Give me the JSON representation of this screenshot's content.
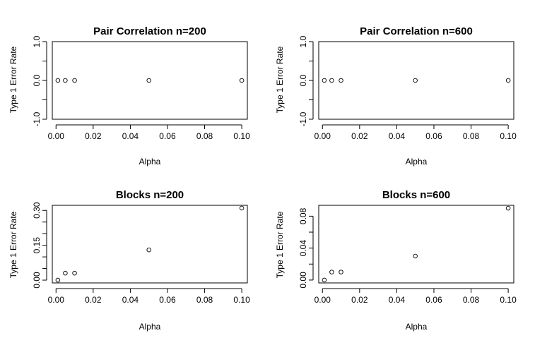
{
  "chart_data": [
    {
      "type": "scatter",
      "title": "Pair Correlation n=200",
      "xlabel": "Alpha",
      "ylabel": "Type 1 Error Rate",
      "x": [
        0.001,
        0.005,
        0.01,
        0.05,
        0.1
      ],
      "y": [
        0,
        0,
        0,
        0,
        0
      ],
      "xlim": [
        -0.002,
        0.103
      ],
      "ylim": [
        -1.0,
        1.0
      ],
      "xticks": [
        0.0,
        0.02,
        0.04,
        0.06,
        0.08,
        0.1
      ],
      "xtick_labels": [
        "0.00",
        "0.02",
        "0.04",
        "0.06",
        "0.08",
        "0.10"
      ],
      "yticks": [
        -1.0,
        0.0,
        1.0
      ],
      "ytick_labels": [
        "-1.0",
        "0.0",
        "1.0"
      ],
      "yminor": [
        -0.5,
        0.5
      ],
      "grid": false,
      "marker": "circle-open"
    },
    {
      "type": "scatter",
      "title": "Pair Correlation n=600",
      "xlabel": "Alpha",
      "ylabel": "Type 1 Error Rate",
      "x": [
        0.001,
        0.005,
        0.01,
        0.05,
        0.1
      ],
      "y": [
        0,
        0,
        0,
        0,
        0
      ],
      "xlim": [
        -0.002,
        0.103
      ],
      "ylim": [
        -1.0,
        1.0
      ],
      "xticks": [
        0.0,
        0.02,
        0.04,
        0.06,
        0.08,
        0.1
      ],
      "xtick_labels": [
        "0.00",
        "0.02",
        "0.04",
        "0.06",
        "0.08",
        "0.10"
      ],
      "yticks": [
        -1.0,
        0.0,
        1.0
      ],
      "ytick_labels": [
        "-1.0",
        "0.0",
        "1.0"
      ],
      "yminor": [
        -0.5,
        0.5
      ],
      "grid": false,
      "marker": "circle-open"
    },
    {
      "type": "scatter",
      "title": "Blocks n=200",
      "xlabel": "Alpha",
      "ylabel": "Type 1 Error Rate",
      "x": [
        0.001,
        0.005,
        0.01,
        0.05,
        0.1
      ],
      "y": [
        0.0,
        0.03,
        0.03,
        0.13,
        0.31
      ],
      "xlim": [
        -0.002,
        0.103
      ],
      "ylim": [
        -0.012,
        0.322
      ],
      "xticks": [
        0.0,
        0.02,
        0.04,
        0.06,
        0.08,
        0.1
      ],
      "xtick_labels": [
        "0.00",
        "0.02",
        "0.04",
        "0.06",
        "0.08",
        "0.10"
      ],
      "yticks": [
        0.0,
        0.15,
        0.3
      ],
      "ytick_labels": [
        "0.00",
        "0.15",
        "0.30"
      ],
      "yminor": [
        0.05,
        0.1,
        0.2,
        0.25
      ],
      "grid": false,
      "marker": "circle-open"
    },
    {
      "type": "scatter",
      "title": "Blocks n=600",
      "xlabel": "Alpha",
      "ylabel": "Type 1 Error Rate",
      "x": [
        0.001,
        0.005,
        0.01,
        0.05,
        0.1
      ],
      "y": [
        0.0,
        0.01,
        0.01,
        0.03,
        0.09
      ],
      "xlim": [
        -0.002,
        0.103
      ],
      "ylim": [
        -0.0036,
        0.0936
      ],
      "xticks": [
        0.0,
        0.02,
        0.04,
        0.06,
        0.08,
        0.1
      ],
      "xtick_labels": [
        "0.00",
        "0.02",
        "0.04",
        "0.06",
        "0.08",
        "0.10"
      ],
      "yticks": [
        0.0,
        0.04,
        0.08
      ],
      "ytick_labels": [
        "0.00",
        "0.04",
        "0.08"
      ],
      "yminor": [
        0.02,
        0.06
      ],
      "grid": false,
      "marker": "circle-open"
    }
  ]
}
